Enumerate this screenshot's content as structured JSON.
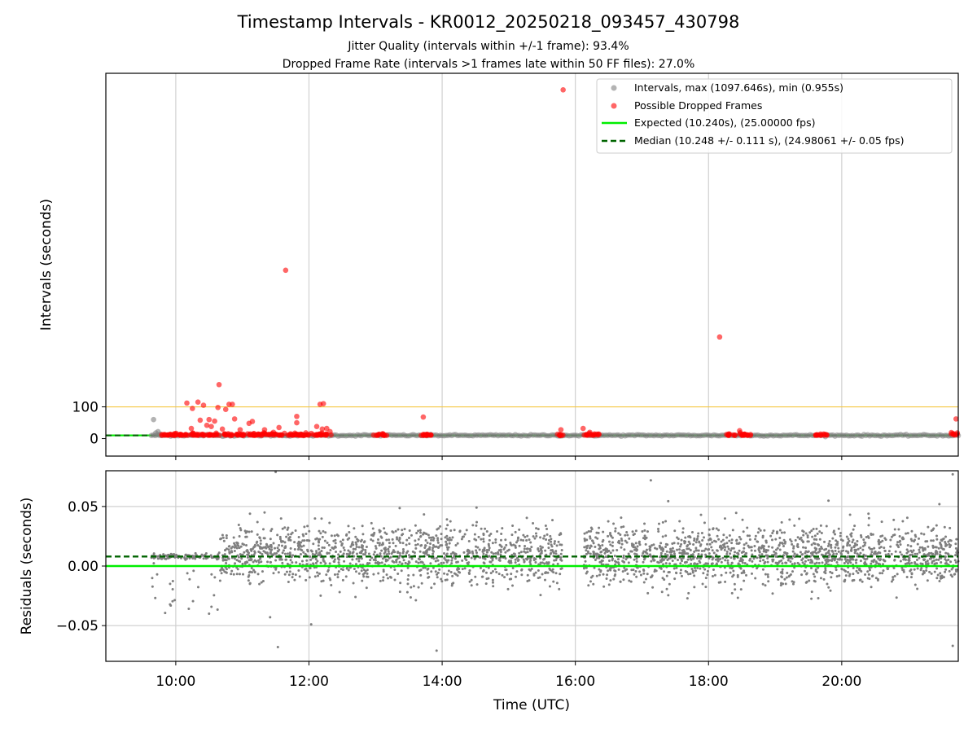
{
  "figure": {
    "title": "Timestamp Intervals - KR0012_20250218_093457_430798",
    "subtitle_1": "Jitter Quality (intervals within +/-1 frame): 93.4%",
    "subtitle_2": "Dropped Frame Rate (intervals >1 frames late within 50 FF files): 27.0%"
  },
  "chart_data": [
    {
      "type": "scatter",
      "panel": "top",
      "ylabel": "Intervals (seconds)",
      "xlim_hours": [
        8.95,
        21.75
      ],
      "ylim": [
        -55,
        1150
      ],
      "yticks": [
        0,
        100
      ],
      "ytick_labels": [
        "0",
        "100"
      ],
      "grid": "x",
      "legend_position": "top-right",
      "reference_lines": [
        {
          "name": "Expected (10.240s), (25.00000 fps)",
          "y": 10.24,
          "color": "#00ee00",
          "style": "solid"
        },
        {
          "name": "Median (10.248 +/- 0.111 s), (24.98061 +/- 0.05 fps)",
          "y": 10.248,
          "color": "#006400",
          "style": "dashed"
        },
        {
          "name": "",
          "y": 100,
          "color": "#f5c842",
          "style": "solid"
        }
      ],
      "series": [
        {
          "name": "Intervals, max (1097.646s), min (0.955s)",
          "color": "#808080",
          "x_range": [
            "09:38",
            "21:45"
          ],
          "typical_y": 10.24,
          "points": [
            {
              "x": "09:40",
              "y": 60
            },
            {
              "x": "09:42",
              "y": 18
            },
            {
              "x": "09:44",
              "y": 22
            },
            {
              "x": "09:46",
              "y": 14
            }
          ]
        },
        {
          "name": "Possible Dropped Frames",
          "color": "#ff0000",
          "points": [
            {
              "x": "15:49",
              "y": 1098
            },
            {
              "x": "11:39",
              "y": 530
            },
            {
              "x": "18:10",
              "y": 320
            },
            {
              "x": "10:39",
              "y": 170
            },
            {
              "x": "10:10",
              "y": 112
            },
            {
              "x": "10:20",
              "y": 115
            },
            {
              "x": "10:15",
              "y": 95
            },
            {
              "x": "10:25",
              "y": 105
            },
            {
              "x": "10:38",
              "y": 98
            },
            {
              "x": "10:45",
              "y": 92
            },
            {
              "x": "10:48",
              "y": 108
            },
            {
              "x": "10:51",
              "y": 108
            },
            {
              "x": "10:53",
              "y": 62
            },
            {
              "x": "10:30",
              "y": 60
            },
            {
              "x": "10:22",
              "y": 58
            },
            {
              "x": "10:35",
              "y": 55
            },
            {
              "x": "10:14",
              "y": 32
            },
            {
              "x": "10:28",
              "y": 42
            },
            {
              "x": "10:32",
              "y": 38
            },
            {
              "x": "10:42",
              "y": 30
            },
            {
              "x": "10:58",
              "y": 28
            },
            {
              "x": "11:06",
              "y": 48
            },
            {
              "x": "11:09",
              "y": 54
            },
            {
              "x": "11:20",
              "y": 28
            },
            {
              "x": "11:28",
              "y": 20
            },
            {
              "x": "11:33",
              "y": 35
            },
            {
              "x": "11:49",
              "y": 50
            },
            {
              "x": "11:49",
              "y": 70
            },
            {
              "x": "12:07",
              "y": 38
            },
            {
              "x": "12:10",
              "y": 108
            },
            {
              "x": "12:13",
              "y": 110
            },
            {
              "x": "12:12",
              "y": 30
            },
            {
              "x": "12:16",
              "y": 32
            },
            {
              "x": "12:19",
              "y": 22
            },
            {
              "x": "13:43",
              "y": 68
            },
            {
              "x": "16:07",
              "y": 32
            },
            {
              "x": "16:13",
              "y": 20
            },
            {
              "x": "18:28",
              "y": 25
            },
            {
              "x": "15:47",
              "y": 28
            },
            {
              "x": "21:43",
              "y": 62
            }
          ],
          "clusters_near_y10": [
            [
              "09:47",
              "12:20"
            ],
            [
              "12:58",
              "13:10"
            ],
            [
              "13:40",
              "13:52"
            ],
            [
              "15:44",
              "15:50"
            ],
            [
              "16:08",
              "16:22"
            ],
            [
              "18:15",
              "18:38"
            ],
            [
              "19:36",
              "19:47"
            ],
            [
              "21:38",
              "21:45"
            ]
          ]
        }
      ]
    },
    {
      "type": "scatter",
      "panel": "bottom",
      "xlabel": "Time (UTC)",
      "ylabel": "Residuals (seconds)",
      "xlim_hours": [
        8.95,
        21.75
      ],
      "ylim": [
        -0.08,
        0.08
      ],
      "yticks": [
        0.05,
        0.0,
        -0.05
      ],
      "ytick_labels": [
        "0.05",
        "0.00",
        "−0.05"
      ],
      "xtick_hours": [
        10,
        12,
        14,
        16,
        18,
        20
      ],
      "xtick_labels": [
        "10:00",
        "12:00",
        "14:00",
        "16:00",
        "18:00",
        "20:00"
      ],
      "grid": "both",
      "reference_lines": [
        {
          "name": "Expected residual",
          "y": 0.0,
          "color": "#00ee00",
          "style": "solid"
        },
        {
          "name": "Median residual",
          "y": 0.008,
          "color": "#006400",
          "style": "dashed"
        }
      ],
      "series": [
        {
          "name": "",
          "color": "#7f7f7f",
          "x_range": [
            "09:38",
            "21:45"
          ],
          "y_center": 0.009,
          "y_spread": 0.012,
          "gap": [
            "15:48",
            "16:07"
          ],
          "outliers": [
            {
              "x": "11:30",
              "y": 0.079
            },
            {
              "x": "11:32",
              "y": -0.068
            },
            {
              "x": "12:02",
              "y": -0.049
            },
            {
              "x": "13:55",
              "y": -0.071
            },
            {
              "x": "17:08",
              "y": 0.072
            },
            {
              "x": "21:40",
              "y": 0.077
            },
            {
              "x": "21:40",
              "y": -0.067
            },
            {
              "x": "11:25",
              "y": -0.043
            },
            {
              "x": "11:20",
              "y": 0.045
            },
            {
              "x": "10:30",
              "y": -0.04
            },
            {
              "x": "21:28",
              "y": 0.052
            }
          ]
        }
      ]
    }
  ]
}
